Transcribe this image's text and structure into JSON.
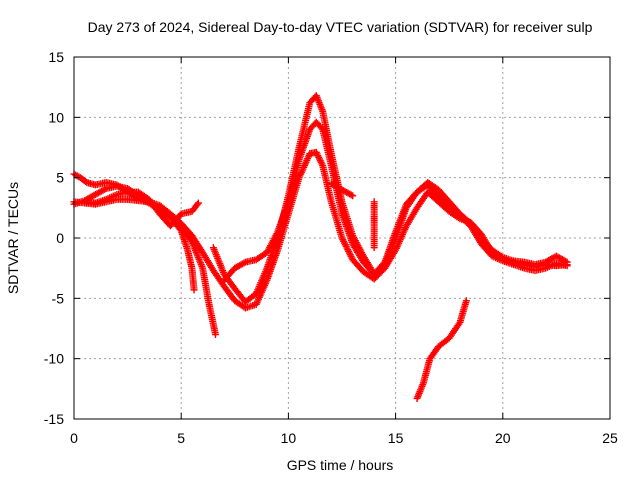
{
  "chart_data": {
    "type": "scatter",
    "title": "Day 273 of 2024, Sidereal Day-to-day VTEC variation (SDTVAR) for receiver sulp",
    "xlabel": "GPS time / hours",
    "ylabel": "SDTVAR / TECUs",
    "xlim": [
      0,
      25
    ],
    "ylim": [
      -15,
      15
    ],
    "xticks": [
      0,
      5,
      10,
      15,
      20,
      25
    ],
    "yticks": [
      -15,
      -10,
      -5,
      0,
      5,
      10,
      15
    ],
    "grid": true,
    "marker": "plus",
    "color": "#ff0000",
    "series": [
      {
        "name": "track-1",
        "points": [
          [
            0.0,
            5.3
          ],
          [
            0.3,
            5.0
          ],
          [
            0.6,
            4.6
          ],
          [
            1.0,
            4.4
          ],
          [
            1.5,
            4.6
          ],
          [
            2.0,
            4.4
          ],
          [
            2.5,
            3.8
          ],
          [
            3.0,
            3.3
          ],
          [
            3.5,
            2.9
          ],
          [
            4.0,
            2.3
          ],
          [
            4.5,
            1.7
          ],
          [
            5.0,
            0.6
          ],
          [
            5.3,
            -1.0
          ],
          [
            5.5,
            -2.5
          ],
          [
            5.6,
            -4.3
          ]
        ]
      },
      {
        "name": "track-2",
        "points": [
          [
            0.0,
            2.8
          ],
          [
            0.5,
            3.1
          ],
          [
            1.0,
            3.6
          ],
          [
            1.5,
            4.1
          ],
          [
            2.0,
            4.3
          ],
          [
            2.5,
            4.1
          ],
          [
            3.0,
            3.5
          ],
          [
            3.5,
            2.9
          ],
          [
            4.0,
            2.5
          ],
          [
            4.5,
            1.8
          ],
          [
            5.0,
            1.0
          ],
          [
            5.5,
            -0.3
          ],
          [
            6.0,
            -2.5
          ],
          [
            6.3,
            -5.5
          ],
          [
            6.6,
            -8.0
          ]
        ]
      },
      {
        "name": "track-3",
        "points": [
          [
            0.0,
            3.0
          ],
          [
            0.5,
            2.9
          ],
          [
            1.0,
            2.8
          ],
          [
            1.5,
            3.0
          ],
          [
            2.0,
            3.2
          ],
          [
            2.5,
            3.2
          ],
          [
            3.0,
            3.1
          ],
          [
            3.5,
            3.0
          ],
          [
            4.0,
            2.7
          ],
          [
            4.5,
            2.0
          ],
          [
            5.0,
            1.2
          ],
          [
            5.5,
            0.2
          ],
          [
            6.0,
            -1.2
          ],
          [
            6.5,
            -2.7
          ],
          [
            7.0,
            -4.0
          ],
          [
            7.5,
            -5.2
          ],
          [
            8.0,
            -5.8
          ],
          [
            8.5,
            -5.5
          ],
          [
            9.0,
            -3.5
          ],
          [
            9.5,
            -1.0
          ],
          [
            10.0,
            2.0
          ],
          [
            10.5,
            5.0
          ],
          [
            11.0,
            7.0
          ],
          [
            11.3,
            7.1
          ],
          [
            11.6,
            6.0
          ],
          [
            12.0,
            3.0
          ],
          [
            12.5,
            0.0
          ],
          [
            13.0,
            -1.8
          ],
          [
            13.5,
            -2.8
          ],
          [
            14.0,
            -3.4
          ],
          [
            14.5,
            -2.5
          ],
          [
            15.0,
            -1.0
          ],
          [
            15.5,
            1.0
          ],
          [
            16.0,
            2.5
          ],
          [
            16.5,
            3.8
          ],
          [
            17.0,
            3.0
          ],
          [
            17.5,
            2.2
          ],
          [
            18.0,
            1.6
          ],
          [
            18.5,
            1.3
          ],
          [
            19.0,
            0.3
          ],
          [
            19.5,
            -1.2
          ],
          [
            20.0,
            -1.8
          ],
          [
            20.5,
            -2.0
          ],
          [
            21.0,
            -2.2
          ],
          [
            21.5,
            -2.4
          ],
          [
            22.0,
            -2.2
          ],
          [
            22.5,
            -2.3
          ],
          [
            23.0,
            -2.2
          ]
        ]
      },
      {
        "name": "track-4",
        "points": [
          [
            6.5,
            -0.8
          ],
          [
            7.0,
            -3.0
          ],
          [
            7.5,
            -4.2
          ],
          [
            8.0,
            -5.3
          ],
          [
            8.5,
            -4.6
          ],
          [
            9.0,
            -2.5
          ],
          [
            9.5,
            0.0
          ],
          [
            10.0,
            3.5
          ],
          [
            10.5,
            7.5
          ],
          [
            11.0,
            11.2
          ],
          [
            11.3,
            11.8
          ],
          [
            11.6,
            10.5
          ],
          [
            12.0,
            7.0
          ],
          [
            12.5,
            3.0
          ],
          [
            13.0,
            0.2
          ],
          [
            13.5,
            -1.5
          ],
          [
            14.0,
            -3.0
          ],
          [
            14.5,
            -2.2
          ],
          [
            15.0,
            0.0
          ],
          [
            15.5,
            2.5
          ],
          [
            16.0,
            3.8
          ],
          [
            16.5,
            4.4
          ],
          [
            17.0,
            3.5
          ],
          [
            17.5,
            2.5
          ],
          [
            18.0,
            1.8
          ],
          [
            18.5,
            1.0
          ],
          [
            19.0,
            -0.5
          ],
          [
            19.5,
            -1.5
          ],
          [
            20.0,
            -1.9
          ],
          [
            20.5,
            -2.2
          ],
          [
            21.0,
            -2.5
          ],
          [
            21.5,
            -2.7
          ],
          [
            22.0,
            -2.5
          ],
          [
            22.5,
            -2.1
          ],
          [
            23.0,
            -2.3
          ]
        ]
      },
      {
        "name": "track-5",
        "points": [
          [
            7.0,
            -3.5
          ],
          [
            7.5,
            -2.5
          ],
          [
            8.0,
            -2.0
          ],
          [
            8.5,
            -1.8
          ],
          [
            9.0,
            -1.2
          ],
          [
            9.5,
            0.5
          ],
          [
            10.0,
            3.0
          ],
          [
            10.5,
            6.5
          ],
          [
            11.0,
            9.0
          ],
          [
            11.3,
            9.6
          ],
          [
            11.6,
            9.0
          ],
          [
            12.0,
            6.0
          ],
          [
            12.5,
            2.0
          ],
          [
            13.0,
            -0.5
          ],
          [
            13.5,
            -2.0
          ],
          [
            14.0,
            -3.0
          ],
          [
            14.5,
            -2.0
          ],
          [
            15.0,
            0.5
          ],
          [
            15.5,
            2.8
          ],
          [
            16.0,
            3.8
          ],
          [
            16.5,
            4.6
          ],
          [
            17.0,
            4.0
          ],
          [
            17.5,
            3.0
          ],
          [
            18.0,
            2.0
          ],
          [
            18.5,
            1.2
          ],
          [
            19.0,
            0.0
          ],
          [
            19.5,
            -1.0
          ],
          [
            20.0,
            -1.6
          ],
          [
            20.5,
            -1.9
          ],
          [
            21.0,
            -2.0
          ],
          [
            21.5,
            -2.2
          ],
          [
            22.0,
            -2.0
          ],
          [
            22.5,
            -1.5
          ],
          [
            23.0,
            -2.0
          ]
        ]
      },
      {
        "name": "track-6",
        "points": [
          [
            0.5,
            3.0
          ],
          [
            1.0,
            2.9
          ],
          [
            1.5,
            3.2
          ],
          [
            2.0,
            3.6
          ],
          [
            2.5,
            3.8
          ],
          [
            3.0,
            3.8
          ],
          [
            3.5,
            3.2
          ],
          [
            4.0,
            2.0
          ],
          [
            4.5,
            1.0
          ],
          [
            5.0,
            2.0
          ],
          [
            5.5,
            2.2
          ],
          [
            5.8,
            2.9
          ]
        ]
      },
      {
        "name": "track-7",
        "points": [
          [
            12.0,
            4.5
          ],
          [
            12.5,
            4.0
          ],
          [
            13.0,
            3.5
          ]
        ]
      },
      {
        "name": "track-8",
        "points": [
          [
            14.0,
            3.0
          ],
          [
            14.0,
            1.0
          ],
          [
            14.0,
            -0.8
          ]
        ]
      },
      {
        "name": "track-9",
        "points": [
          [
            16.0,
            -13.3
          ],
          [
            16.3,
            -12.0
          ],
          [
            16.6,
            -10.0
          ],
          [
            17.0,
            -9.0
          ],
          [
            17.5,
            -8.3
          ],
          [
            18.0,
            -7.0
          ],
          [
            18.3,
            -5.2
          ]
        ]
      }
    ]
  }
}
